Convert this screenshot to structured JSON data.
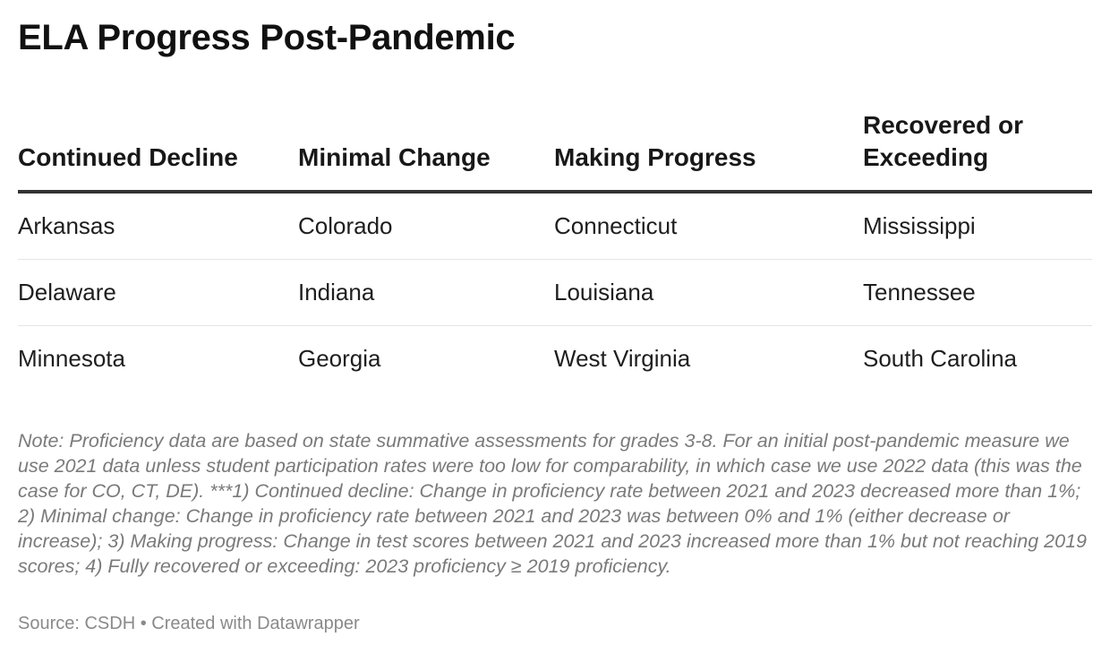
{
  "title": "ELA Progress Post-Pandemic",
  "chart_data": {
    "type": "table",
    "title": "ELA Progress Post-Pandemic",
    "columns": [
      "Continued Decline",
      "Minimal Change",
      "Making Progress",
      "Recovered or Exceeding"
    ],
    "rows": [
      [
        "Arkansas",
        "Colorado",
        "Connecticut",
        "Mississippi"
      ],
      [
        "Delaware",
        "Indiana",
        "Louisiana",
        "Tennessee"
      ],
      [
        "Minnesota",
        "Georgia",
        "West Virginia",
        "South Carolina"
      ]
    ]
  },
  "note": "Note: Proficiency data are based on state summative assessments for grades 3-8. For an initial post-pandemic measure we use 2021 data unless student participation rates were too low for comparability, in which case we use 2022 data (this was the case for CO, CT, DE). ***1) Continued decline: Change in proficiency rate between 2021 and 2023 decreased more than 1%; 2) Minimal change: Change in proficiency rate between 2021 and 2023 was between 0% and 1% (either decrease or increase); 3) Making progress: Change in test scores between 2021 and 2023 increased more than 1% but not reaching 2019 scores; 4) Fully recovered or exceeding: 2023 proficiency ≥ 2019 proficiency.",
  "source": "Source: CSDH • Created with Datawrapper"
}
